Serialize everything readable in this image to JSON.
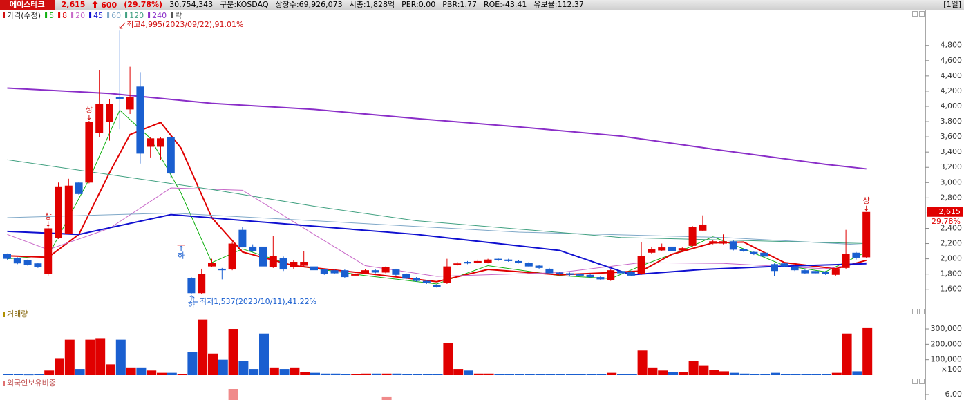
{
  "header": {
    "items": [
      "에이스테크",
      "2,615",
      "600",
      "(29.78%)",
      "30,754,343",
      "구분:KOSDAQ",
      "상장수:69,926,073",
      "시총:1,828억",
      "PER:0.00",
      "PBR:1.77",
      "ROE:-43.41",
      "유보율:112.37"
    ],
    "period": "[1일]"
  },
  "chart_data": [
    {
      "type": "candlestick",
      "legend_title": "가격(수정)",
      "legend_extra": "락",
      "up_color": "#e00000",
      "down_color": "#1a5fd0",
      "open": [
        2060,
        2010,
        1980,
        1940,
        1800,
        2270,
        2330,
        3000,
        3000,
        3650,
        3800,
        4120,
        3960,
        4260,
        3470,
        3470,
        3600,
        2184,
        1750,
        1550,
        1900,
        1870,
        1860,
        2380,
        2160,
        2160,
        1890,
        2010,
        1890,
        1910,
        1900,
        1860,
        1850,
        1850,
        1780,
        1810,
        1850,
        1820,
        1860,
        1800,
        1750,
        1710,
        1660,
        1680,
        1920,
        1960,
        1950,
        1950,
        2000,
        1990,
        1970,
        1950,
        1910,
        1870,
        1820,
        1810,
        1800,
        1790,
        1760,
        1720,
        1840,
        1830,
        1800,
        2080,
        2110,
        2160,
        2110,
        2170,
        2370,
        2200,
        2200,
        2230,
        2130,
        2090,
        2080,
        1930,
        1940,
        1900,
        1850,
        1840,
        1830,
        1790,
        1880,
        2080,
        2020
      ],
      "high": [
        2070,
        2020,
        1990,
        1950,
        2410,
        3000,
        3050,
        3010,
        3810,
        4480,
        4100,
        4995,
        4520,
        4450,
        3600,
        3600,
        3620,
        2184,
        1760,
        1870,
        2000,
        1880,
        2220,
        2420,
        2190,
        2170,
        2300,
        2030,
        1980,
        2100,
        1920,
        1870,
        1860,
        1860,
        1810,
        1860,
        1860,
        1900,
        1870,
        1810,
        1760,
        1720,
        1670,
        2000,
        1960,
        1970,
        1990,
        2000,
        2010,
        2000,
        1980,
        1960,
        1920,
        1880,
        1830,
        1820,
        1810,
        1800,
        1770,
        1860,
        1850,
        1840,
        2220,
        2160,
        2200,
        2180,
        2150,
        2430,
        2570,
        2250,
        2320,
        2240,
        2140,
        2100,
        2090,
        1940,
        1950,
        1910,
        1860,
        1850,
        1840,
        1870,
        2380,
        2090,
        2615
      ],
      "low": [
        1990,
        1930,
        1910,
        1880,
        1780,
        2260,
        2320,
        2840,
        2990,
        3600,
        3550,
        3700,
        3900,
        3250,
        3330,
        3300,
        3060,
        2184,
        1537,
        1540,
        1890,
        1730,
        1850,
        2150,
        2090,
        1880,
        1880,
        1840,
        1870,
        1900,
        1840,
        1790,
        1800,
        1750,
        1770,
        1800,
        1810,
        1810,
        1780,
        1730,
        1700,
        1670,
        1620,
        1670,
        1910,
        1930,
        1940,
        1940,
        1970,
        1960,
        1940,
        1890,
        1870,
        1800,
        1790,
        1780,
        1770,
        1750,
        1720,
        1710,
        1800,
        1770,
        1790,
        2070,
        2100,
        2090,
        2090,
        2160,
        2360,
        2190,
        2190,
        2110,
        2090,
        2050,
        2020,
        1770,
        1890,
        1840,
        1800,
        1800,
        1790,
        1780,
        1870,
        1990,
        2010
      ],
      "close": [
        2000,
        1940,
        1920,
        1890,
        2400,
        2950,
        2960,
        2850,
        3800,
        4030,
        4030,
        4100,
        4120,
        3380,
        3580,
        3580,
        3120,
        2184,
        1550,
        1800,
        1950,
        1850,
        2200,
        2150,
        2100,
        1900,
        2040,
        1860,
        1960,
        1960,
        1850,
        1800,
        1810,
        1760,
        1800,
        1850,
        1820,
        1890,
        1790,
        1740,
        1710,
        1680,
        1630,
        1900,
        1940,
        1940,
        1970,
        1990,
        1980,
        1970,
        1950,
        1900,
        1880,
        1810,
        1800,
        1790,
        1780,
        1760,
        1730,
        1850,
        1810,
        1780,
        2040,
        2130,
        2150,
        2100,
        2140,
        2420,
        2450,
        2230,
        2230,
        2120,
        2100,
        2060,
        2030,
        1840,
        1900,
        1850,
        1810,
        1810,
        1800,
        1860,
        2060,
        2015,
        2615
      ],
      "series": [
        {
          "name": "5",
          "color": "#10b010",
          "x": [
            0,
            4,
            8,
            11,
            14,
            17,
            20,
            23,
            28,
            35,
            42,
            47,
            54,
            59,
            62,
            66,
            69,
            72,
            76,
            80,
            84
          ],
          "values": [
            2000,
            2040,
            3040,
            3950,
            3580,
            2860,
            1950,
            2130,
            1910,
            1780,
            1670,
            1910,
            1780,
            1740,
            1910,
            2110,
            2290,
            2130,
            1910,
            1830,
            2090
          ]
        },
        {
          "name": "8",
          "color": "#e00000",
          "x": [
            0,
            4,
            7,
            10,
            12,
            15,
            17,
            20,
            23,
            28,
            35,
            42,
            47,
            54,
            59,
            62,
            65,
            69,
            72,
            76,
            81,
            84
          ],
          "values": [
            2040,
            2020,
            2320,
            3130,
            3630,
            3790,
            3450,
            2540,
            2090,
            1910,
            1810,
            1700,
            1860,
            1790,
            1820,
            1840,
            2060,
            2210,
            2220,
            1950,
            1870,
            1980
          ]
        },
        {
          "name": "20",
          "color": "#c868c8",
          "x": [
            0,
            4,
            10,
            16,
            23,
            30,
            35,
            42,
            54,
            62,
            70,
            80,
            84
          ],
          "values": [
            2320,
            2120,
            2400,
            2930,
            2900,
            2320,
            1910,
            1770,
            1820,
            1950,
            1940,
            1870,
            1950
          ]
        },
        {
          "name": "45",
          "color": "#1010d0",
          "x": [
            0,
            7,
            16,
            27,
            40,
            54,
            61,
            68,
            75,
            84
          ],
          "values": [
            2360,
            2320,
            2580,
            2460,
            2320,
            2110,
            1790,
            1860,
            1900,
            1935
          ]
        },
        {
          "name": "60",
          "color": "#7fa8c8",
          "x": [
            0,
            16,
            30,
            50,
            70,
            84
          ],
          "values": [
            2540,
            2600,
            2500,
            2350,
            2280,
            2180
          ]
        },
        {
          "name": "120",
          "color": "#40a080",
          "x": [
            0,
            20,
            30,
            40,
            60,
            84
          ],
          "values": [
            3300,
            2910,
            2690,
            2500,
            2280,
            2200
          ]
        },
        {
          "name": "240",
          "color": "#8a2ec8",
          "x": [
            0,
            10,
            20,
            30,
            40,
            50,
            60,
            70,
            80,
            84
          ],
          "values": [
            4240,
            4170,
            4040,
            3960,
            3840,
            3730,
            3610,
            3420,
            3240,
            3180
          ]
        }
      ],
      "ylim": [
        1380,
        5260
      ],
      "yticks": [
        {
          "value": 1600,
          "label": "1,600"
        },
        {
          "value": 1800,
          "label": "1,800"
        },
        {
          "value": 2000,
          "label": "2,000"
        },
        {
          "value": 2200,
          "label": "2,200"
        },
        {
          "value": 2400,
          "label": "2,400"
        },
        {
          "value": 2600,
          "label": "2,600"
        },
        {
          "value": 2800,
          "label": "2,800"
        },
        {
          "value": 3000,
          "label": "3,000"
        },
        {
          "value": 3200,
          "label": "3,200"
        },
        {
          "value": 3400,
          "label": "3,400"
        },
        {
          "value": 3600,
          "label": "3,600"
        },
        {
          "value": 3800,
          "label": "3,800"
        },
        {
          "value": 4000,
          "label": "4,000"
        },
        {
          "value": 4200,
          "label": "4,200"
        },
        {
          "value": 4400,
          "label": "4,400"
        },
        {
          "value": 4600,
          "label": "4,600"
        },
        {
          "value": 4800,
          "label": "4,800"
        }
      ],
      "annotations": [
        "최고4,995(2023/09/22),91.01%",
        "최저1,537(2023/10/11),41.22%"
      ],
      "limit_up_label": "상",
      "limit_down_label": "하",
      "last_label": "2,615",
      "change_label": "29.78%"
    },
    {
      "type": "bar",
      "title": "거래량",
      "values": [
        5000,
        5000,
        4000,
        5000,
        30000,
        110000,
        230000,
        40000,
        230000,
        240000,
        70000,
        230000,
        50000,
        50000,
        30000,
        15000,
        15000,
        5000,
        150000,
        360000,
        140000,
        100000,
        300000,
        90000,
        40000,
        270000,
        50000,
        40000,
        50000,
        20000,
        15000,
        10000,
        10000,
        8000,
        8000,
        10000,
        10000,
        10000,
        10000,
        8000,
        8000,
        8000,
        8000,
        210000,
        40000,
        30000,
        10000,
        10000,
        8000,
        8000,
        8000,
        8000,
        6000,
        6000,
        6000,
        6000,
        6000,
        5000,
        5000,
        15000,
        6000,
        5000,
        160000,
        50000,
        30000,
        20000,
        20000,
        90000,
        60000,
        35000,
        25000,
        15000,
        10000,
        8000,
        8000,
        15000,
        8000,
        8000,
        6000,
        6000,
        5000,
        15000,
        270000,
        25000,
        305000
      ],
      "ylim": [
        0,
        430000
      ],
      "yticks": [
        {
          "value": 100000,
          "label": "100,000"
        },
        {
          "value": 200000,
          "label": "200,000"
        },
        {
          "value": 300000,
          "label": "300,000"
        }
      ],
      "unit_label": "×100"
    },
    {
      "type": "bar",
      "title": "외국인보유비중",
      "color": "#f08a8a",
      "values": [
        null,
        null,
        null,
        null,
        null,
        null,
        null,
        null,
        null,
        null,
        null,
        null,
        null,
        null,
        null,
        null,
        null,
        null,
        null,
        null,
        null,
        null,
        6.3,
        null,
        null,
        null,
        null,
        null,
        null,
        null,
        null,
        null,
        null,
        null,
        null,
        null,
        null,
        5.89,
        null,
        null,
        null,
        null,
        null,
        null,
        null,
        null,
        null,
        null,
        null,
        null,
        null,
        null,
        null,
        null,
        null,
        null,
        null,
        null,
        null,
        null,
        null,
        null,
        null,
        null,
        null,
        null,
        null,
        null,
        null,
        null,
        null,
        null,
        null,
        null,
        null,
        null,
        null,
        null,
        null,
        null,
        null,
        null,
        null,
        null,
        null
      ],
      "ylim": [
        5.7,
        6.9
      ],
      "yticks": [
        {
          "value": 6,
          "label": "6.00"
        }
      ]
    }
  ]
}
